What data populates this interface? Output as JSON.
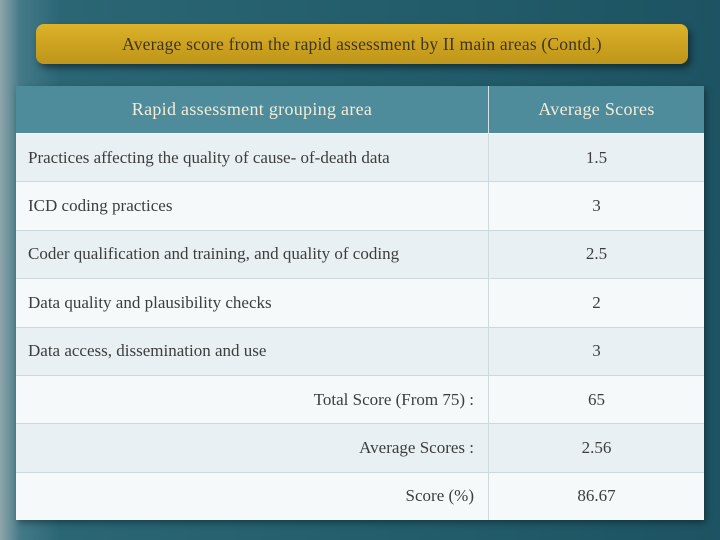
{
  "slide": {
    "title": "Average score from the rapid assessment by II main areas (Contd.)"
  },
  "table": {
    "headers": [
      "Rapid assessment grouping area",
      "Average Scores"
    ],
    "rows": [
      {
        "label": "Practices affecting the quality of cause- of-death data",
        "value": "1.5"
      },
      {
        "label": "ICD coding practices",
        "value": "3"
      },
      {
        "label": "Coder qualification and training, and quality of coding",
        "value": "2.5"
      },
      {
        "label": "Data quality and plausibility checks",
        "value": "2"
      },
      {
        "label": "Data access, dissemination and use",
        "value": "3"
      },
      {
        "label": "Total Score (From 75) :",
        "value": "65"
      },
      {
        "label": "Average Scores :",
        "value": "2.56"
      },
      {
        "label": "Score (%)",
        "value": "86.67"
      }
    ]
  },
  "colors": {
    "slide_background": "#2a6575",
    "banner_gold": "#cba11f",
    "banner_text": "#3e3522",
    "table_header_teal": "#4e8c9b",
    "table_header_text": "#f2ecd9",
    "body_text": "#3d3d3d",
    "row_light": "#f5f9fa",
    "row_shaded": "#e9f0f3"
  }
}
